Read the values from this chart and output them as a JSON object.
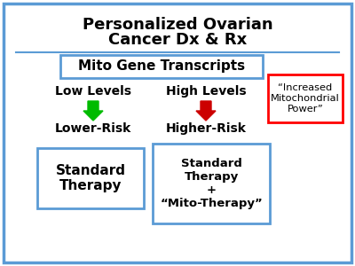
{
  "title_line1": "Personalized Ovarian",
  "title_line2": "Cancer Dx & Rx",
  "mito_box_text": "Mito Gene Transcripts",
  "low_label": "Low Levels",
  "high_label": "High Levels",
  "lower_risk": "Lower-Risk",
  "higher_risk": "Higher-Risk",
  "std_therapy": "Standard\nTherapy",
  "combo_therapy": "Standard\nTherapy\n+\n“Mito-Therapy”",
  "increased_power": "“Increased\nMitochondrial\nPower”",
  "outer_border_color": "#5b9bd5",
  "inner_box_color": "#5b9bd5",
  "red_box_color": "#ff0000",
  "green_arrow_color": "#00bb00",
  "red_arrow_color": "#cc0000",
  "separator_color": "#5b9bd5",
  "bg_color": "#ffffff",
  "text_color": "#000000"
}
